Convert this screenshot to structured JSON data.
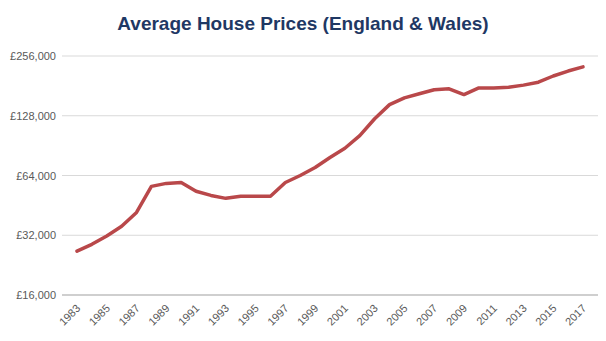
{
  "chart_data": {
    "type": "line",
    "title": "Average House Prices (England & Wales)",
    "categories": [
      "1983",
      null,
      "1985",
      null,
      "1987",
      null,
      "1989",
      null,
      "1991",
      null,
      "1993",
      null,
      "1995",
      null,
      "1997",
      null,
      "1999",
      null,
      "2001",
      null,
      "2003",
      null,
      "2005",
      null,
      "2007",
      null,
      "2009",
      null,
      "2011",
      null,
      "2013",
      null,
      "2015",
      null,
      "2017"
    ],
    "values": [
      26600,
      28800,
      31700,
      35500,
      41700,
      56400,
      58400,
      59000,
      53300,
      50800,
      49100,
      50300,
      50300,
      50300,
      59000,
      64000,
      70200,
      78800,
      87800,
      101600,
      123600,
      145600,
      157600,
      165300,
      173000,
      175000,
      163600,
      176800,
      176800,
      178000,
      182600,
      188900,
      203000,
      215000,
      225600
    ],
    "color": "#b9484a",
    "log": "y",
    "grid": true,
    "ylim": [
      16000,
      256000
    ],
    "yticks": [
      {
        "value": 16000,
        "label": "£16,000"
      },
      {
        "value": 32000,
        "label": "£32,000"
      },
      {
        "value": 64000,
        "label": "£64,000"
      },
      {
        "value": 128000,
        "label": "£128,000"
      },
      {
        "value": 256000,
        "label": "£256,000"
      }
    ]
  }
}
